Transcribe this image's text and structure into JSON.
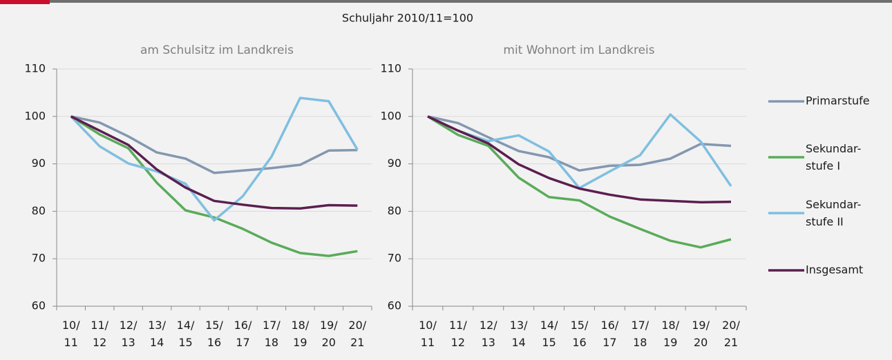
{
  "subtitle": "Schuljahr 2010/11=100",
  "chart_data": [
    {
      "type": "line",
      "title": "am Schulsitz im Landkreis",
      "categories": [
        "10/\n11",
        "11/\n12",
        "12/\n13",
        "13/\n14",
        "14/\n15",
        "15/\n16",
        "16/\n17",
        "17/\n18",
        "18/\n19",
        "19/\n20",
        "20/\n21"
      ],
      "ylim": [
        60,
        110
      ],
      "yticks": [
        60,
        70,
        80,
        90,
        100,
        110
      ],
      "grid": true,
      "series": [
        {
          "color": "#8497b0",
          "values": [
            100,
            98.7,
            95.8,
            92.4,
            91.1,
            88.1,
            88.6,
            89.1,
            89.8,
            92.8,
            92.9
          ]
        },
        {
          "color": "#5aab5a",
          "values": [
            100,
            96.2,
            93.3,
            86,
            80.2,
            78.7,
            76.3,
            73.4,
            71.2,
            70.6,
            71.6
          ]
        },
        {
          "color": "#7fbfe0",
          "values": [
            100,
            93.7,
            90.1,
            88.4,
            85.8,
            78.1,
            83.2,
            91.5,
            103.9,
            103.2,
            93
          ]
        },
        {
          "color": "#5c1e4f",
          "values": [
            100,
            97,
            94,
            88.8,
            85,
            82.2,
            81.4,
            80.7,
            80.6,
            81.3,
            81.2
          ]
        }
      ]
    },
    {
      "type": "line",
      "title": "mit Wohnort im Landkreis",
      "categories": [
        "10/\n11",
        "11/\n12",
        "12/\n13",
        "13/\n14",
        "14/\n15",
        "15/\n16",
        "16/\n17",
        "17/\n18",
        "18/\n19",
        "19/\n20",
        "20/\n21"
      ],
      "ylim": [
        60,
        110
      ],
      "yticks": [
        60,
        70,
        80,
        90,
        100,
        110
      ],
      "grid": true,
      "legend": "right",
      "series": [
        {
          "name": "Primarstufe",
          "color": "#8497b0",
          "values": [
            100,
            98.6,
            95.6,
            92.7,
            91.4,
            88.6,
            89.6,
            89.8,
            91.1,
            94.2,
            93.8
          ]
        },
        {
          "name": "Sekundar-\nstufe I",
          "color": "#5aab5a",
          "values": [
            100,
            96.1,
            93.8,
            87.1,
            83,
            82.3,
            78.9,
            76.3,
            73.8,
            72.4,
            74.1
          ]
        },
        {
          "name": "Sekundar-\nstufe II",
          "color": "#7fbfe0",
          "values": [
            100,
            97,
            94.8,
            96,
            92.6,
            84.9,
            88.4,
            91.8,
            100.4,
            94.7,
            85.3
          ]
        },
        {
          "name": "Insgesamt",
          "color": "#5c1e4f",
          "values": [
            100,
            97,
            94.3,
            89.9,
            87,
            84.8,
            83.5,
            82.5,
            82.2,
            81.9,
            82
          ]
        }
      ]
    }
  ]
}
